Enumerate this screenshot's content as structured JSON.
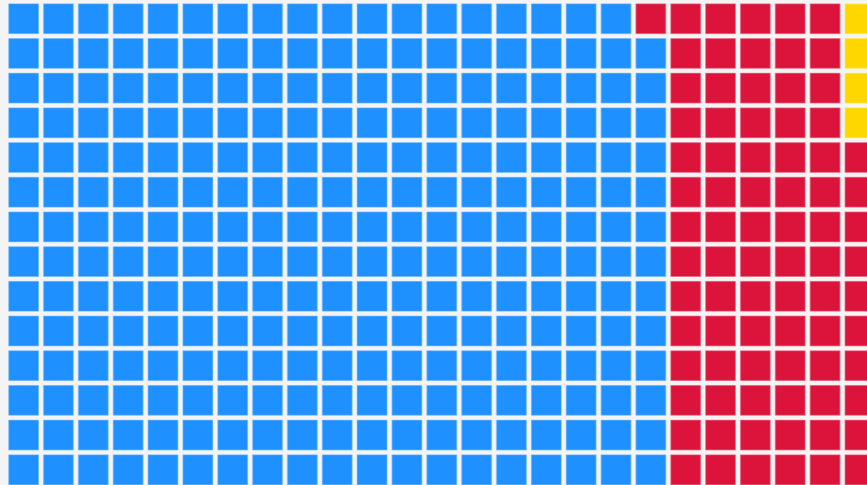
{
  "chart_data": {
    "type": "waffle",
    "series": [
      {
        "color": "#1e90ff",
        "value": 265
      },
      {
        "color": "#dc143c",
        "value": 81
      },
      {
        "color": "#ffd700",
        "value": 4
      }
    ]
  }
}
